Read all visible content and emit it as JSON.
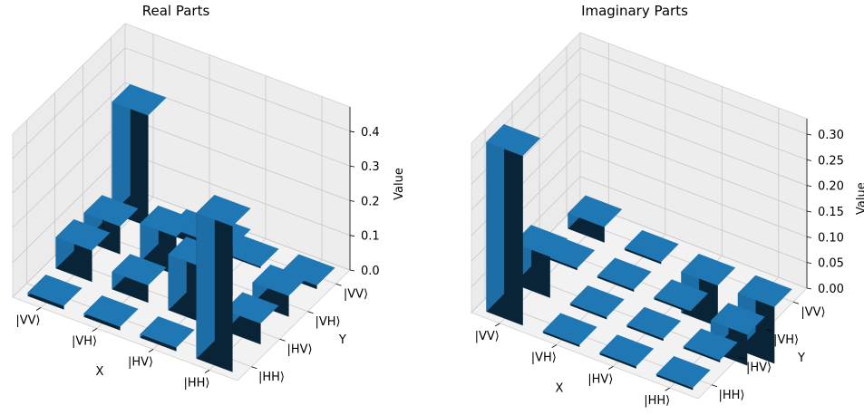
{
  "chart_data": [
    {
      "type": "bar3d",
      "title": "Real Parts",
      "xlabel": "X",
      "ylabel": "Y",
      "zlabel": "Value",
      "x_categories": [
        "|HH⟩",
        "|HV⟩",
        "|VH⟩",
        "|VV⟩"
      ],
      "y_categories": [
        "|HH⟩",
        "|HV⟩",
        "|VH⟩",
        "|VV⟩"
      ],
      "zlim": [
        0,
        0.47
      ],
      "zticks": [
        "0.0",
        "0.1",
        "0.2",
        "0.3",
        "0.4"
      ],
      "grid": true,
      "bar_color": "#1f77b4",
      "values": [
        [
          0.42,
          0.06,
          0.06,
          0.01
        ],
        [
          0.01,
          0.16,
          0.14,
          0.0
        ],
        [
          0.01,
          0.05,
          0.11,
          0.02
        ],
        [
          0.01,
          0.09,
          0.08,
          0.32
        ]
      ]
    },
    {
      "type": "bar3d",
      "title": "Imaginary Parts",
      "xlabel": "X",
      "ylabel": "Y",
      "zlabel": "Value",
      "x_categories": [
        "|HH⟩",
        "|HV⟩",
        "|VH⟩",
        "|VV⟩"
      ],
      "y_categories": [
        "|HH⟩",
        "|HV⟩",
        "|VH⟩",
        "|VV⟩"
      ],
      "zlim": [
        0,
        0.33
      ],
      "zticks": [
        "0.00",
        "0.05",
        "0.10",
        "0.15",
        "0.20",
        "0.25",
        "0.30"
      ],
      "grid": true,
      "bar_color": "#1f77b4",
      "values": [
        [
          0.0,
          0.0,
          -0.06,
          -0.11
        ],
        [
          0.0,
          0.0,
          0.0,
          -0.08
        ],
        [
          0.0,
          0.0,
          0.0,
          0.0
        ],
        [
          0.33,
          0.08,
          0.0,
          0.03
        ]
      ]
    }
  ]
}
